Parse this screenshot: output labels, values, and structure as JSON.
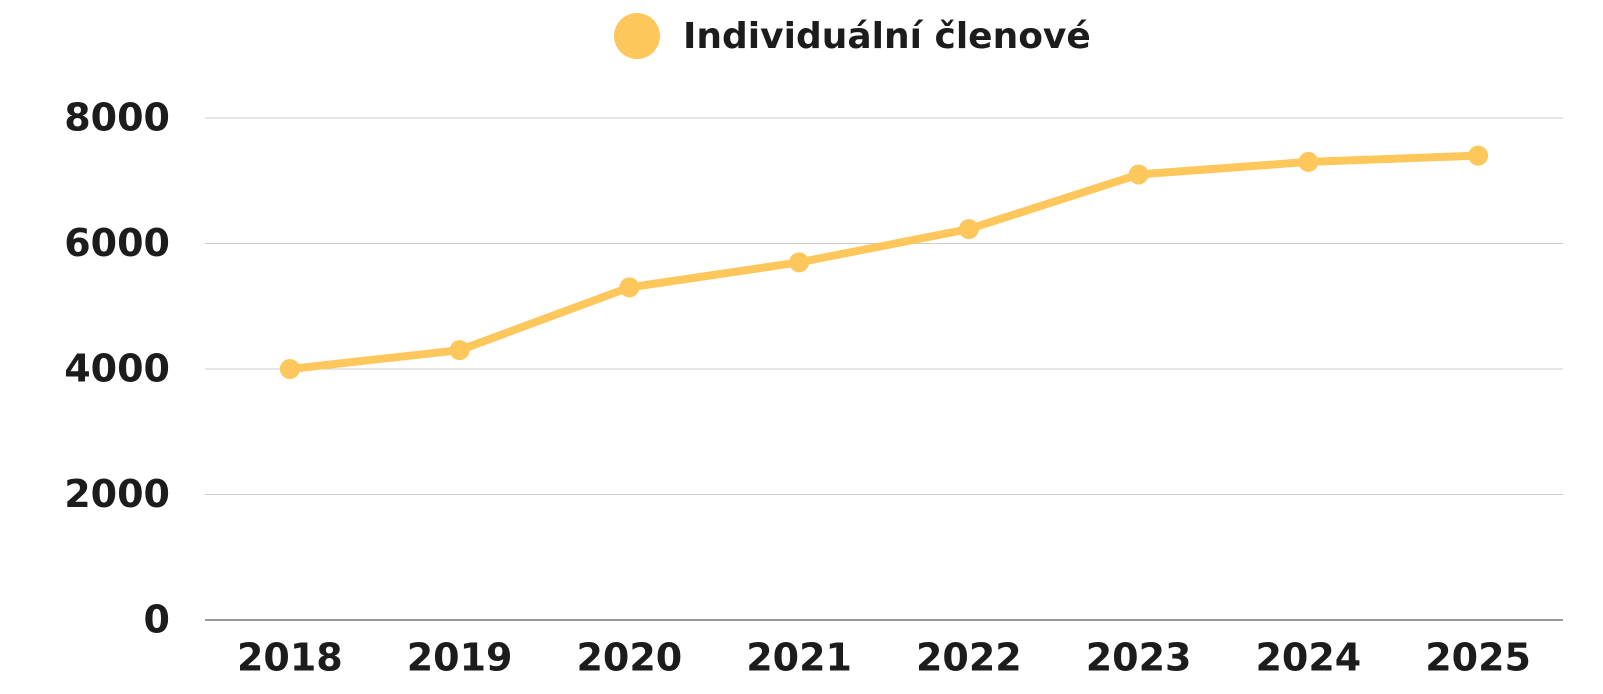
{
  "chart_data": {
    "type": "line",
    "categories": [
      "2018",
      "2019",
      "2020",
      "2021",
      "2022",
      "2023",
      "2024",
      "2025"
    ],
    "series": [
      {
        "name": "Individuální členové",
        "color": "#fec75c",
        "values": [
          4000,
          4300,
          5300,
          5700,
          6230,
          7100,
          7300,
          7400
        ]
      }
    ],
    "ylim": [
      0,
      8000
    ],
    "yticks": [
      0,
      2000,
      4000,
      6000,
      8000
    ],
    "grid": true,
    "legend": "top"
  }
}
